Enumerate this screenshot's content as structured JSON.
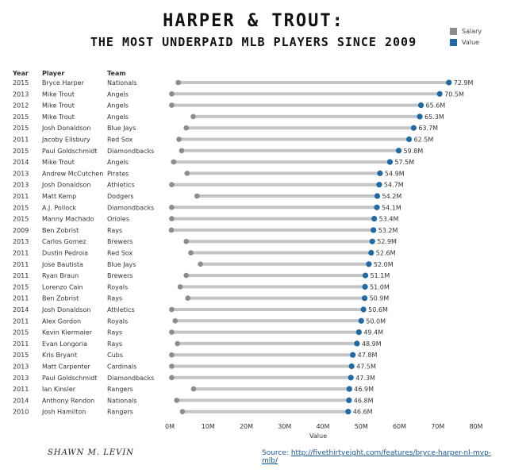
{
  "chart_data": {
    "type": "dumbbell",
    "title": "HARPER & TROUT:",
    "subtitle": "THE MOST UNDERPAID MLB PLAYERS SINCE 2009",
    "xlabel": "Value",
    "xlim": [
      0,
      80
    ],
    "xticks": [
      "0M",
      "10M",
      "20M",
      "30M",
      "40M",
      "50M",
      "60M",
      "70M",
      "80M"
    ],
    "legend": [
      {
        "name": "Salary",
        "color": "#8c8c8c"
      },
      {
        "name": "Value",
        "color": "#1f6aa5"
      }
    ],
    "columns": [
      "Year",
      "Player",
      "Team"
    ],
    "rows": [
      {
        "year": "2015",
        "player": "Bryce Harper",
        "team": "Nationals",
        "salary": 2.2,
        "value": 72.9,
        "label": "72.9M"
      },
      {
        "year": "2013",
        "player": "Mike Trout",
        "team": "Angels",
        "salary": 0.5,
        "value": 70.5,
        "label": "70.5M"
      },
      {
        "year": "2012",
        "player": "Mike Trout",
        "team": "Angels",
        "salary": 0.5,
        "value": 65.6,
        "label": "65.6M"
      },
      {
        "year": "2015",
        "player": "Mike Trout",
        "team": "Angels",
        "salary": 6.1,
        "value": 65.3,
        "label": "65.3M"
      },
      {
        "year": "2015",
        "player": "Josh Donaldson",
        "team": "Blue Jays",
        "salary": 4.3,
        "value": 63.7,
        "label": "63.7M"
      },
      {
        "year": "2011",
        "player": "Jacoby Ellsbury",
        "team": "Red Sox",
        "salary": 2.4,
        "value": 62.5,
        "label": "62.5M"
      },
      {
        "year": "2015",
        "player": "Paul Goldschmidt",
        "team": "Diamondbacks",
        "salary": 3.1,
        "value": 59.8,
        "label": "59.8M"
      },
      {
        "year": "2014",
        "player": "Mike Trout",
        "team": "Angels",
        "salary": 1.0,
        "value": 57.5,
        "label": "57.5M"
      },
      {
        "year": "2013",
        "player": "Andrew McCutchen",
        "team": "Pirates",
        "salary": 4.5,
        "value": 54.9,
        "label": "54.9M"
      },
      {
        "year": "2013",
        "player": "Josh Donaldson",
        "team": "Athletics",
        "salary": 0.5,
        "value": 54.7,
        "label": "54.7M"
      },
      {
        "year": "2011",
        "player": "Matt Kemp",
        "team": "Dodgers",
        "salary": 7.1,
        "value": 54.2,
        "label": "54.2M"
      },
      {
        "year": "2015",
        "player": "A.J. Pollock",
        "team": "Diamondbacks",
        "salary": 0.5,
        "value": 54.1,
        "label": "54.1M"
      },
      {
        "year": "2015",
        "player": "Manny Machado",
        "team": "Orioles",
        "salary": 0.5,
        "value": 53.4,
        "label": "53.4M"
      },
      {
        "year": "2009",
        "player": "Ben Zobrist",
        "team": "Rays",
        "salary": 0.4,
        "value": 53.2,
        "label": "53.2M"
      },
      {
        "year": "2013",
        "player": "Carlos Gomez",
        "team": "Brewers",
        "salary": 4.3,
        "value": 52.9,
        "label": "52.9M"
      },
      {
        "year": "2011",
        "player": "Dustin Pedroia",
        "team": "Red Sox",
        "salary": 5.5,
        "value": 52.6,
        "label": "52.6M"
      },
      {
        "year": "2011",
        "player": "Jose Bautista",
        "team": "Blue Jays",
        "salary": 8.0,
        "value": 52.0,
        "label": "52.0M"
      },
      {
        "year": "2011",
        "player": "Ryan Braun",
        "team": "Brewers",
        "salary": 4.3,
        "value": 51.1,
        "label": "51.1M"
      },
      {
        "year": "2015",
        "player": "Lorenzo Cain",
        "team": "Royals",
        "salary": 2.7,
        "value": 51.0,
        "label": "51.0M"
      },
      {
        "year": "2011",
        "player": "Ben Zobrist",
        "team": "Rays",
        "salary": 4.7,
        "value": 50.9,
        "label": "50.9M"
      },
      {
        "year": "2014",
        "player": "Josh Donaldson",
        "team": "Athletics",
        "salary": 0.5,
        "value": 50.6,
        "label": "50.6M"
      },
      {
        "year": "2011",
        "player": "Alex Gordon",
        "team": "Royals",
        "salary": 1.4,
        "value": 50.0,
        "label": "50.0M"
      },
      {
        "year": "2015",
        "player": "Kevin Kiermaier",
        "team": "Rays",
        "salary": 0.5,
        "value": 49.4,
        "label": "49.4M"
      },
      {
        "year": "2011",
        "player": "Evan Longoria",
        "team": "Rays",
        "salary": 2.0,
        "value": 48.9,
        "label": "48.9M"
      },
      {
        "year": "2015",
        "player": "Kris Bryant",
        "team": "Cubs",
        "salary": 0.5,
        "value": 47.8,
        "label": "47.8M"
      },
      {
        "year": "2013",
        "player": "Matt Carpenter",
        "team": "Cardinals",
        "salary": 0.5,
        "value": 47.5,
        "label": "47.5M"
      },
      {
        "year": "2013",
        "player": "Paul Goldschmidt",
        "team": "Diamondbacks",
        "salary": 0.5,
        "value": 47.3,
        "label": "47.3M"
      },
      {
        "year": "2011",
        "player": "Ian Kinsler",
        "team": "Rangers",
        "salary": 6.2,
        "value": 46.9,
        "label": "46.9M"
      },
      {
        "year": "2014",
        "player": "Anthony Rendon",
        "team": "Nationals",
        "salary": 1.8,
        "value": 46.8,
        "label": "46.8M"
      },
      {
        "year": "2010",
        "player": "Josh Hamilton",
        "team": "Rangers",
        "salary": 3.3,
        "value": 46.6,
        "label": "46.6M"
      }
    ]
  },
  "signature": "SHAWN M. LEVIN",
  "source": {
    "prefix": "Source: ",
    "link": "http://fivethirtyeight.com/features/bryce-harper-nl-mvp-mlb/"
  }
}
